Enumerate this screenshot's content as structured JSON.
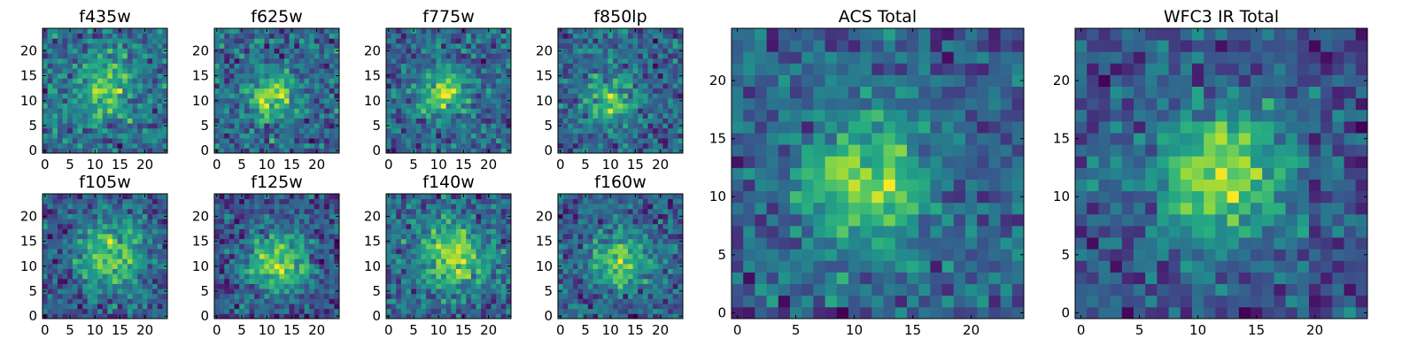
{
  "chart_data": [
    {
      "type": "heatmap",
      "title": "f435w",
      "xticks": [
        0,
        5,
        10,
        15,
        20
      ],
      "yticks": [
        0,
        5,
        10,
        15,
        20
      ],
      "xlim": [
        -0.5,
        24.5
      ],
      "ylim": [
        -0.5,
        24.5
      ],
      "grid": false,
      "colormap": "viridis",
      "peak": [
        12,
        13
      ],
      "spread": 4.0,
      "noise": 0.55,
      "seed": 11,
      "pixels": 25
    },
    {
      "type": "heatmap",
      "title": "f625w",
      "xticks": [
        0,
        5,
        10,
        15,
        20
      ],
      "yticks": [
        0,
        5,
        10,
        15,
        20
      ],
      "xlim": [
        -0.5,
        24.5
      ],
      "ylim": [
        -0.5,
        24.5
      ],
      "grid": false,
      "colormap": "viridis",
      "peak": [
        11,
        11
      ],
      "spread": 3.2,
      "noise": 0.45,
      "seed": 23,
      "pixels": 25
    },
    {
      "type": "heatmap",
      "title": "f775w",
      "xticks": [
        0,
        5,
        10,
        15,
        20
      ],
      "yticks": [
        0,
        5,
        10,
        15,
        20
      ],
      "xlim": [
        -0.5,
        24.5
      ],
      "ylim": [
        -0.5,
        24.5
      ],
      "grid": false,
      "colormap": "viridis",
      "peak": [
        11,
        12
      ],
      "spread": 3.2,
      "noise": 0.42,
      "seed": 37,
      "pixels": 25
    },
    {
      "type": "heatmap",
      "title": "f850lp",
      "xticks": [
        0,
        5,
        10,
        15,
        20
      ],
      "yticks": [
        0,
        5,
        10,
        15,
        20
      ],
      "xlim": [
        -0.5,
        24.5
      ],
      "ylim": [
        -0.5,
        24.5
      ],
      "grid": false,
      "colormap": "viridis",
      "peak": [
        10,
        10
      ],
      "spread": 3.2,
      "noise": 0.5,
      "seed": 41,
      "pixels": 25
    },
    {
      "type": "heatmap",
      "title": "f105w",
      "xticks": [
        0,
        5,
        10,
        15,
        20
      ],
      "yticks": [
        0,
        5,
        10,
        15,
        20
      ],
      "xlim": [
        -0.5,
        24.5
      ],
      "ylim": [
        -0.5,
        24.5
      ],
      "grid": false,
      "colormap": "viridis",
      "peak": [
        13,
        12
      ],
      "spread": 4.5,
      "noise": 0.4,
      "seed": 53,
      "pixels": 25
    },
    {
      "type": "heatmap",
      "title": "f125w",
      "xticks": [
        0,
        5,
        10,
        15,
        20
      ],
      "yticks": [
        0,
        5,
        10,
        15,
        20
      ],
      "xlim": [
        -0.5,
        24.5
      ],
      "ylim": [
        -0.5,
        24.5
      ],
      "grid": false,
      "colormap": "viridis",
      "peak": [
        12,
        11
      ],
      "spread": 4.5,
      "noise": 0.35,
      "seed": 67,
      "pixels": 25
    },
    {
      "type": "heatmap",
      "title": "f140w",
      "xticks": [
        0,
        5,
        10,
        15,
        20
      ],
      "yticks": [
        0,
        5,
        10,
        15,
        20
      ],
      "xlim": [
        -0.5,
        24.5
      ],
      "ylim": [
        -0.5,
        24.5
      ],
      "grid": false,
      "colormap": "viridis",
      "peak": [
        13,
        12
      ],
      "spread": 4.5,
      "noise": 0.42,
      "seed": 79,
      "pixels": 25
    },
    {
      "type": "heatmap",
      "title": "f160w",
      "xticks": [
        0,
        5,
        10,
        15,
        20
      ],
      "yticks": [
        0,
        5,
        10,
        15,
        20
      ],
      "xlim": [
        -0.5,
        24.5
      ],
      "ylim": [
        -0.5,
        24.5
      ],
      "grid": false,
      "colormap": "viridis",
      "peak": [
        12,
        11
      ],
      "spread": 4.0,
      "noise": 0.45,
      "seed": 83,
      "pixels": 25
    },
    {
      "type": "heatmap",
      "title": "ACS Total",
      "xticks": [
        0,
        5,
        10,
        15,
        20
      ],
      "yticks": [
        0,
        5,
        10,
        15,
        20
      ],
      "xlim": [
        -0.5,
        24.5
      ],
      "ylim": [
        -0.5,
        24.5
      ],
      "grid": false,
      "colormap": "viridis",
      "peak": [
        11,
        11
      ],
      "spread": 3.6,
      "noise": 0.35,
      "seed": 97,
      "pixels": 25
    },
    {
      "type": "heatmap",
      "title": "WFC3 IR Total",
      "xticks": [
        0,
        5,
        10,
        15,
        20
      ],
      "yticks": [
        0,
        5,
        10,
        15,
        20
      ],
      "xlim": [
        -0.5,
        24.5
      ],
      "ylim": [
        -0.5,
        24.5
      ],
      "grid": false,
      "colormap": "viridis",
      "peak": [
        12,
        12
      ],
      "spread": 4.2,
      "noise": 0.3,
      "seed": 101,
      "pixels": 25
    }
  ]
}
